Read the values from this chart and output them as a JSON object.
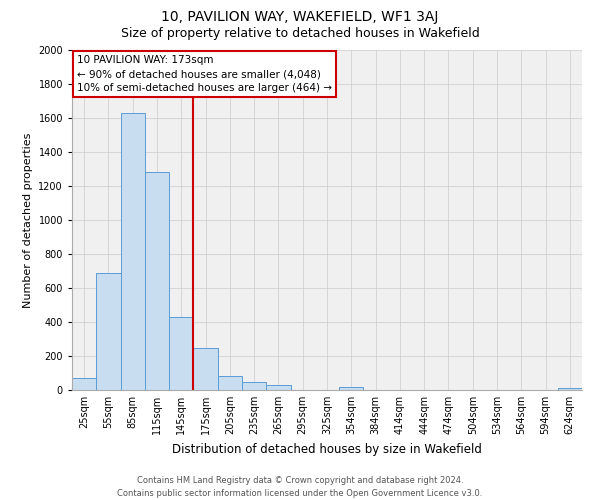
{
  "title": "10, PAVILION WAY, WAKEFIELD, WF1 3AJ",
  "subtitle": "Size of property relative to detached houses in Wakefield",
  "xlabel": "Distribution of detached houses by size in Wakefield",
  "ylabel": "Number of detached properties",
  "categories": [
    "25sqm",
    "55sqm",
    "85sqm",
    "115sqm",
    "145sqm",
    "175sqm",
    "205sqm",
    "235sqm",
    "265sqm",
    "295sqm",
    "325sqm",
    "354sqm",
    "384sqm",
    "414sqm",
    "444sqm",
    "474sqm",
    "504sqm",
    "534sqm",
    "564sqm",
    "594sqm",
    "624sqm"
  ],
  "values": [
    70,
    690,
    1630,
    1280,
    430,
    250,
    85,
    50,
    30,
    0,
    0,
    20,
    0,
    0,
    0,
    0,
    0,
    0,
    0,
    0,
    10
  ],
  "bar_color": "#c8ddf0",
  "bar_edge_color": "#5b9bd5",
  "bar_alpha": 1.0,
  "annotation_text_line1": "10 PAVILION WAY: 173sqm",
  "annotation_text_line2": "← 90% of detached houses are smaller (4,048)",
  "annotation_text_line3": "10% of semi-detached houses are larger (464) →",
  "annotation_box_facecolor": "#ffffff",
  "annotation_box_edgecolor": "#cc0000",
  "vline_color": "#cc0000",
  "vline_x": 4.5,
  "ylim": [
    0,
    2000
  ],
  "yticks": [
    0,
    200,
    400,
    600,
    800,
    1000,
    1200,
    1400,
    1600,
    1800,
    2000
  ],
  "grid_color": "#cccccc",
  "plot_bg_color": "#f0f0f0",
  "fig_bg_color": "#ffffff",
  "title_fontsize": 10,
  "subtitle_fontsize": 9,
  "xlabel_fontsize": 8.5,
  "ylabel_fontsize": 8,
  "tick_fontsize": 7,
  "annotation_fontsize": 7.5,
  "footer_fontsize": 6,
  "footer_line1": "Contains HM Land Registry data © Crown copyright and database right 2024.",
  "footer_line2": "Contains public sector information licensed under the Open Government Licence v3.0."
}
